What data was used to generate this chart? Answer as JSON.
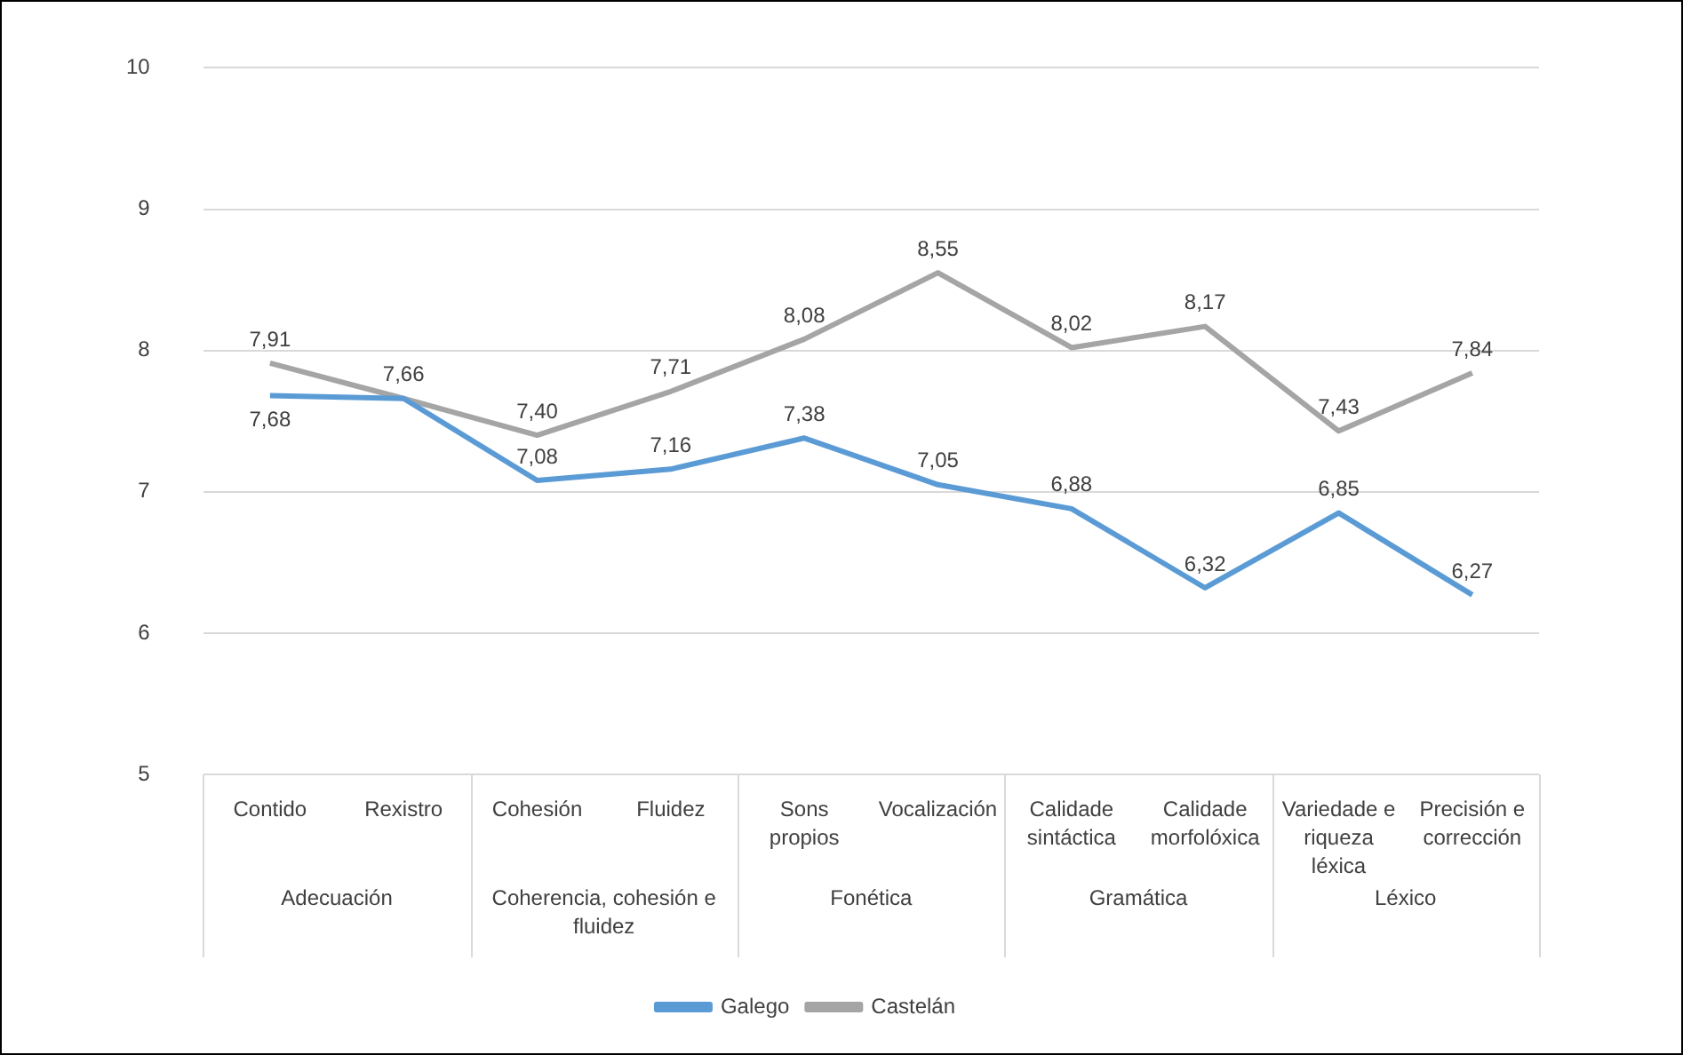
{
  "chart_data": {
    "type": "line",
    "categories": [
      "Contido",
      "Rexistro",
      "Cohesión",
      "Fluidez",
      "Sons propios",
      "Vocalización",
      "Calidade sintáctica",
      "Calidade morfolóxica",
      "Variedade e riqueza léxica",
      "Precisión e corrección"
    ],
    "annotations": [
      "Adecuación",
      "Coherencia, cohesión e fluidez",
      "Fonética",
      "Gramática",
      "Léxico"
    ],
    "series": [
      {
        "name": "Galego",
        "color": "#5b9bd5",
        "values": [
          7.68,
          7.66,
          7.08,
          7.16,
          7.38,
          7.05,
          6.88,
          6.32,
          6.85,
          6.27
        ],
        "value_labels": [
          "7,68",
          null,
          "7,08",
          "7,16",
          "7,38",
          "7,05",
          "6,88",
          "6,32",
          "6,85",
          "6,27"
        ]
      },
      {
        "name": "Castelán",
        "color": "#a5a5a5",
        "values": [
          7.91,
          7.66,
          7.4,
          7.71,
          8.08,
          8.55,
          8.02,
          8.17,
          7.43,
          7.84
        ],
        "value_labels": [
          "7,91",
          "7,66",
          "7,40",
          "7,71",
          "8,08",
          "8,55",
          "8,02",
          "8,17",
          "7,43",
          "7,84"
        ]
      }
    ],
    "ylim": [
      5,
      10
    ],
    "yticks": [
      5,
      6,
      7,
      8,
      9,
      10
    ],
    "grid": "y",
    "legend": "bottom",
    "marker": "none",
    "line_style": "solid"
  }
}
